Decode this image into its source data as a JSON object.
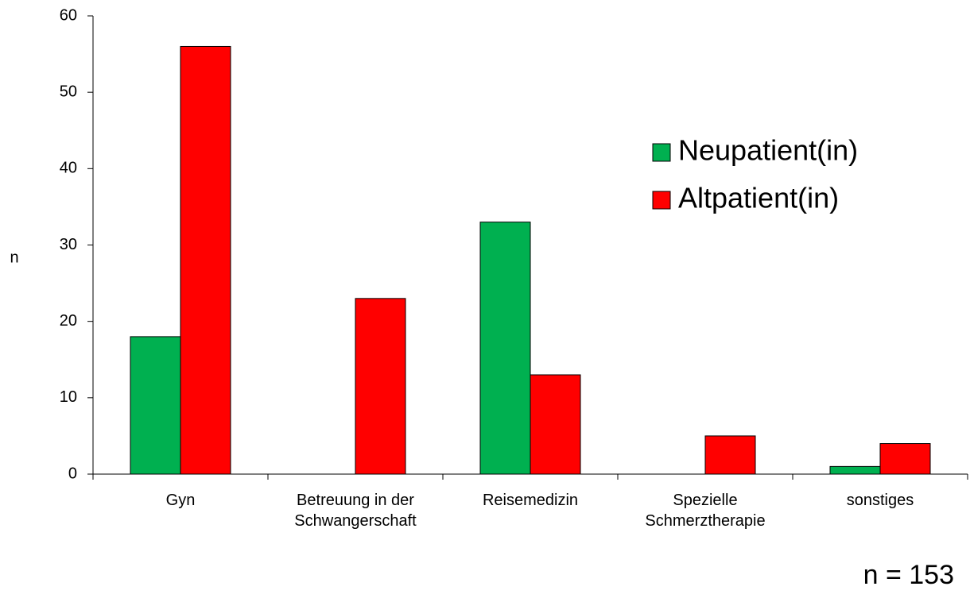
{
  "chart_data": {
    "type": "bar",
    "categories": [
      "Gyn",
      "Betreuung in der Schwangerschaft",
      "Reisemedizin",
      "Spezielle Schmerztherapie",
      "sonstiges"
    ],
    "series": [
      {
        "name": "Neupatient(in)",
        "color": "#00b050",
        "values": [
          18,
          0,
          33,
          0,
          1
        ]
      },
      {
        "name": "Altpatient(in)",
        "color": "#ff0000",
        "values": [
          56,
          23,
          13,
          5,
          4
        ]
      }
    ],
    "y_label": "n",
    "annotation": "n = 153",
    "ylim": [
      0,
      60
    ],
    "yticks": [
      0,
      10,
      20,
      30,
      40,
      50,
      60
    ],
    "grid": false,
    "legend": "upper right"
  }
}
